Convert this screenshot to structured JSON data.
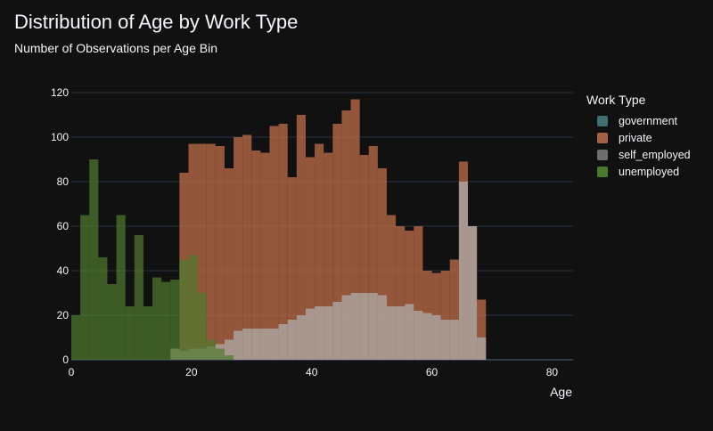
{
  "chart_data": {
    "type": "histogram",
    "title": "Distribution of Age by Work Type",
    "subtitle": "Number of Observations per Age Bin",
    "xlabel": "Age",
    "ylabel": "",
    "xlim": [
      0,
      83.5
    ],
    "ylim": [
      0,
      120
    ],
    "x_ticks": [
      "0",
      "20",
      "40",
      "60",
      "80"
    ],
    "y_ticks": [
      "0",
      "20",
      "40",
      "60",
      "80",
      "100",
      "120"
    ],
    "bin_width": 1.5,
    "bin_start": 0,
    "legend_title": "Work Type",
    "legend_position": "right",
    "grid": true,
    "series": [
      {
        "name": "government",
        "color": "#4c8c8c",
        "values": [
          0,
          0,
          0,
          0,
          0,
          0,
          0,
          0,
          0,
          0,
          0,
          0,
          0,
          0,
          0,
          0,
          0,
          0,
          0,
          0,
          0,
          0,
          0,
          0,
          0,
          0,
          0,
          0,
          0,
          0,
          0,
          0,
          0,
          0,
          0,
          0,
          0,
          0,
          0,
          0,
          0,
          0,
          0,
          0,
          0,
          0,
          0,
          0,
          0,
          0,
          0,
          0,
          0,
          0,
          0,
          0,
          0
        ]
      },
      {
        "name": "private",
        "color": "#b86a48",
        "values": [
          0,
          0,
          0,
          0,
          0,
          0,
          0,
          0,
          0,
          0,
          0,
          5,
          84,
          97,
          97,
          97,
          96,
          86,
          100,
          101,
          94,
          93,
          105,
          106,
          82,
          110,
          91,
          97,
          93,
          106,
          112,
          117,
          92,
          96,
          86,
          65,
          60,
          58,
          60,
          40,
          39,
          40,
          45,
          89,
          60,
          27
        ]
      },
      {
        "name": "self_employed",
        "color": "#b0b0b0",
        "values": [
          0,
          0,
          0,
          0,
          0,
          0,
          0,
          0,
          0,
          0,
          0,
          5,
          4,
          5,
          5,
          6,
          7,
          9,
          13,
          14,
          14,
          14,
          14,
          16,
          18,
          20,
          23,
          24,
          24,
          26,
          29,
          30,
          30,
          30,
          29,
          24,
          24,
          25,
          22,
          21,
          20,
          18,
          18,
          80,
          60,
          10
        ]
      },
      {
        "name": "unemployed",
        "color": "#4f7a2e",
        "values": [
          20,
          65,
          90,
          46,
          34,
          65,
          24,
          56,
          24,
          37,
          35,
          36,
          45,
          47,
          30,
          9,
          5,
          2
        ]
      }
    ]
  },
  "legend": {
    "title": "Work Type",
    "items": [
      {
        "label": "government",
        "color": "#3e6f72"
      },
      {
        "label": "private",
        "color": "#a55f45"
      },
      {
        "label": "self_employed",
        "color": "#6e6e6e"
      },
      {
        "label": "unemployed",
        "color": "#4b7a2f"
      }
    ]
  }
}
